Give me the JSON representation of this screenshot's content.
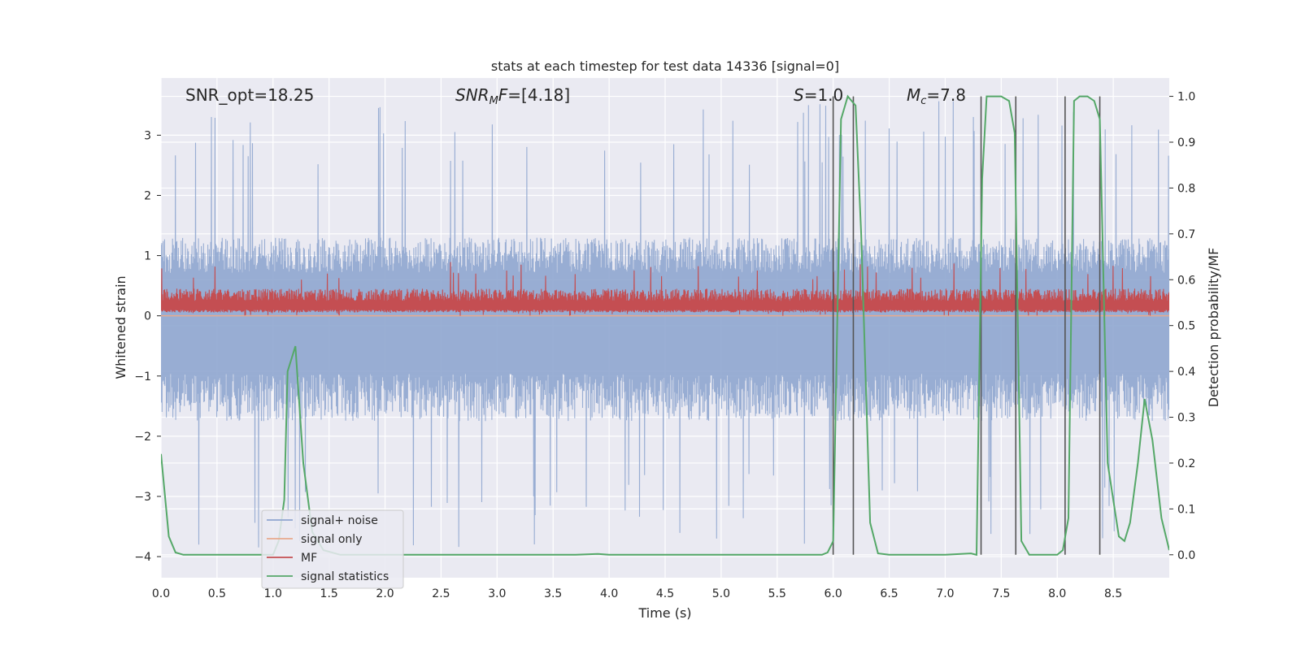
{
  "chart_data": {
    "type": "line",
    "title": "stats at each timestep for test data 14336 [signal=0]",
    "xlabel": "Time (s)",
    "ylabel": "Whitened strain",
    "y2label": "Detection probability/MF",
    "xlim": [
      0.0,
      9.0
    ],
    "ylim": [
      -4.35,
      3.95
    ],
    "y2lim": [
      -0.05,
      1.04
    ],
    "grid": true,
    "x_ticks": [
      "0.0",
      "0.5",
      "1.0",
      "1.5",
      "2.0",
      "2.5",
      "3.0",
      "3.5",
      "4.0",
      "4.5",
      "5.0",
      "5.5",
      "6.0",
      "6.5",
      "7.0",
      "7.5",
      "8.0",
      "8.5"
    ],
    "y_ticks": [
      "−4",
      "−3",
      "−2",
      "−1",
      "0",
      "1",
      "2",
      "3"
    ],
    "y2_ticks": [
      "0.0",
      "0.1",
      "0.2",
      "0.3",
      "0.4",
      "0.5",
      "0.6",
      "0.7",
      "0.8",
      "0.9",
      "1.0"
    ],
    "annotations": {
      "snr_opt": "SNR_opt=18.25",
      "snr_mf_main": "SNR",
      "snr_mf_sub": "M",
      "snr_mf_italic": "F",
      "snr_mf_value": "=[4.18]",
      "s_symbol": "S",
      "s_value": "=1.0",
      "mc_symbol": "M",
      "mc_sub": "c",
      "mc_value": "=7.8"
    },
    "legend": {
      "placement": "lower-left",
      "entries": [
        {
          "label": "signal+ noise",
          "color": "#8fa6cf"
        },
        {
          "label": "signal only",
          "color": "#e8a98c"
        },
        {
          "label": "MF",
          "color": "#c44e52"
        },
        {
          "label": "signal statistics",
          "color": "#55a868"
        }
      ]
    },
    "series": [
      {
        "name": "signal+ noise",
        "axis": "left",
        "style": "noise",
        "color": "#8fa6cf",
        "band_upper": 1.3,
        "band_lower": -1.75,
        "peak_range": [
          2.5,
          3.6
        ],
        "trough_range": [
          -2.6,
          -3.9
        ]
      },
      {
        "name": "signal only",
        "axis": "left",
        "style": "flat",
        "color": "#e8a98c",
        "value": 0.0
      },
      {
        "name": "MF",
        "axis": "left",
        "style": "noise",
        "color": "#c44e52",
        "band_upper": 0.45,
        "band_lower": 0.1,
        "peak_range": [
          0.6,
          0.9
        ],
        "trough_range": [
          0.0,
          0.05
        ]
      },
      {
        "name": "signal statistics",
        "axis": "right",
        "color": "#55a868",
        "x": [
          0.0,
          0.07,
          0.13,
          0.2,
          0.3,
          0.5,
          1.0,
          1.05,
          1.1,
          1.13,
          1.2,
          1.27,
          1.35,
          1.45,
          1.6,
          2.0,
          3.0,
          3.7,
          3.9,
          4.0,
          5.0,
          5.9,
          5.95,
          6.0,
          6.07,
          6.13,
          6.2,
          6.25,
          6.33,
          6.4,
          6.5,
          7.0,
          7.23,
          7.28,
          7.33,
          7.37,
          7.5,
          7.57,
          7.62,
          7.68,
          7.75,
          8.0,
          8.05,
          8.1,
          8.15,
          8.2,
          8.27,
          8.33,
          8.38,
          8.45,
          8.55,
          8.6,
          8.65,
          8.72,
          8.78,
          8.85,
          8.93,
          9.0
        ],
        "y": [
          0.22,
          0.04,
          0.005,
          0.0,
          0.0,
          0.0,
          0.0,
          0.03,
          0.12,
          0.4,
          0.455,
          0.2,
          0.05,
          0.01,
          0.0,
          0.0,
          0.0,
          0.0,
          0.002,
          0.0,
          0.0,
          0.0,
          0.005,
          0.03,
          0.95,
          1.0,
          0.98,
          0.7,
          0.07,
          0.003,
          0.0,
          0.0,
          0.003,
          0.0,
          0.82,
          1.0,
          1.0,
          0.99,
          0.92,
          0.03,
          0.0,
          0.0,
          0.01,
          0.08,
          0.99,
          1.0,
          1.0,
          0.99,
          0.95,
          0.2,
          0.04,
          0.03,
          0.07,
          0.2,
          0.34,
          0.25,
          0.08,
          0.01
        ]
      }
    ],
    "vertical_lines": {
      "color": "#555555",
      "x": [
        6.0,
        6.18,
        7.32,
        7.63,
        8.07,
        8.38
      ]
    }
  }
}
